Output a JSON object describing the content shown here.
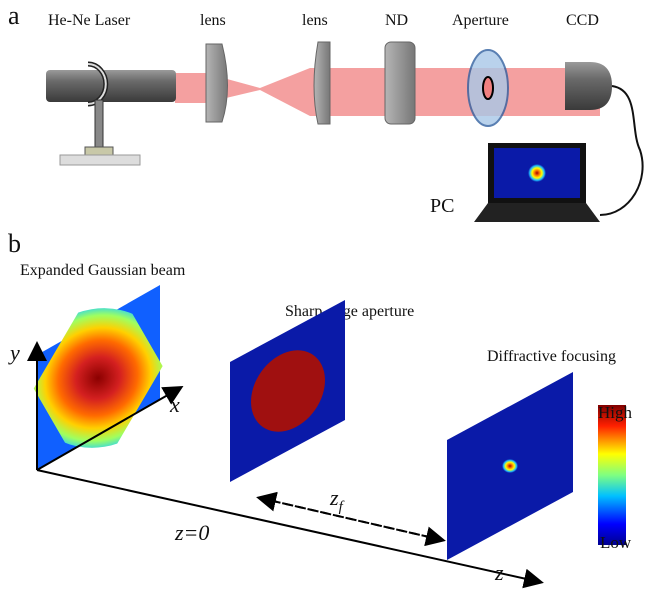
{
  "panel_a": {
    "label": "a",
    "components": [
      "He-Ne Laser",
      "lens",
      "lens",
      "ND",
      "Aperture",
      "CCD"
    ],
    "pc": "PC"
  },
  "panel_b": {
    "label": "b",
    "planes": [
      "Expanded Gaussian beam",
      "Sharp-edge aperture",
      "Diffractive focusing"
    ],
    "axes": {
      "y": "y",
      "x": "x",
      "z": "z"
    },
    "origin": "z=0",
    "distance": {
      "symbol": "z",
      "subscript": "f"
    },
    "colorbar": {
      "high": "High",
      "low": "Low"
    }
  }
}
